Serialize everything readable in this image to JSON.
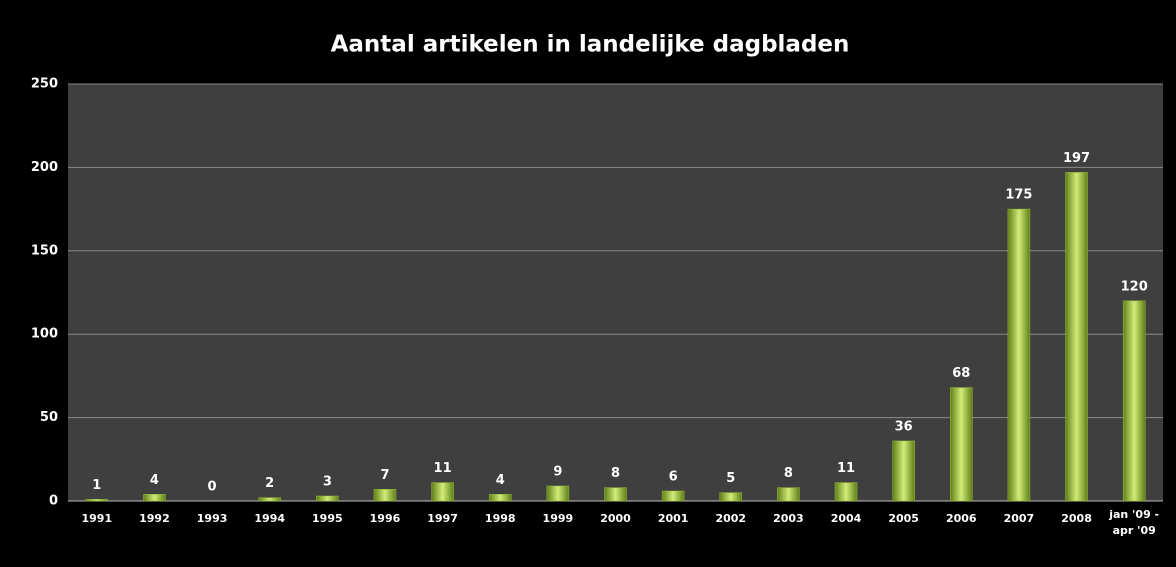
{
  "chart_data": {
    "type": "bar",
    "title": "Aantal artikelen in landelijke dagbladen",
    "categories": [
      "1991",
      "1992",
      "1993",
      "1994",
      "1995",
      "1996",
      "1997",
      "1998",
      "1999",
      "2000",
      "2001",
      "2002",
      "2003",
      "2004",
      "2005",
      "2006",
      "2007",
      "2008",
      "jan '09 - apr '09"
    ],
    "values": [
      1,
      4,
      0,
      2,
      3,
      7,
      11,
      4,
      9,
      8,
      6,
      5,
      8,
      11,
      36,
      68,
      175,
      197,
      120
    ],
    "color": "#9bc234",
    "ylim": [
      0,
      250
    ],
    "yticks": [
      0,
      50,
      100,
      150,
      200,
      250
    ],
    "grid": true
  }
}
